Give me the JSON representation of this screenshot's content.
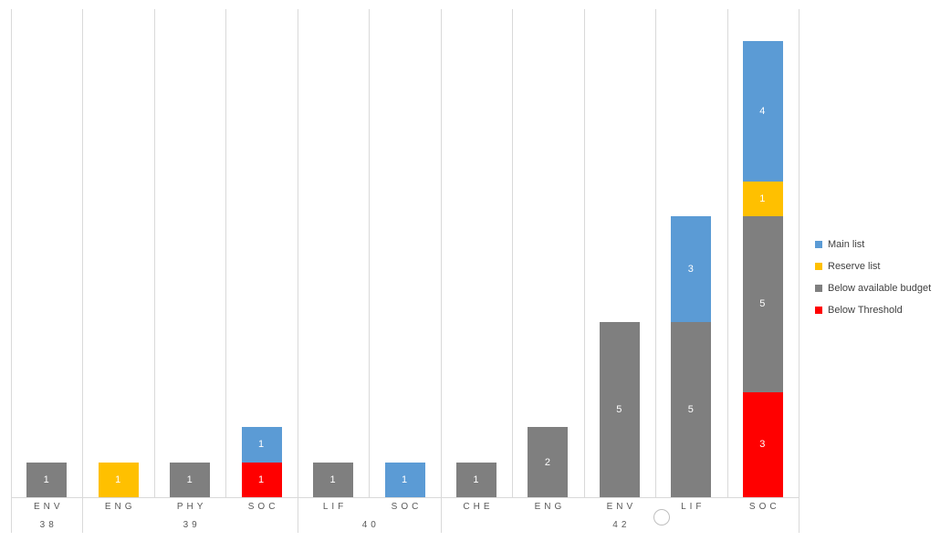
{
  "chart_data": {
    "type": "bar",
    "stacked": true,
    "title": "",
    "categories": [
      "ENV",
      "ENG",
      "PHY",
      "SOC",
      "LIF",
      "SOC",
      "CHE",
      "ENG",
      "ENV",
      "LIF",
      "SOC"
    ],
    "group_labels": [
      {
        "label": "38",
        "span": 1
      },
      {
        "label": "39",
        "span": 3
      },
      {
        "label": "40",
        "span": 2
      },
      {
        "label": "42",
        "span": 5
      }
    ],
    "series": [
      {
        "name": "Below Threshold",
        "color": "#FF0000",
        "values": [
          0,
          0,
          0,
          1,
          0,
          0,
          0,
          0,
          0,
          0,
          3
        ]
      },
      {
        "name": "Below available budget",
        "color": "#7F7F7F",
        "values": [
          1,
          0,
          1,
          0,
          1,
          0,
          1,
          2,
          5,
          5,
          5
        ]
      },
      {
        "name": "Reserve list",
        "color": "#FFC000",
        "values": [
          0,
          1,
          0,
          0,
          0,
          0,
          0,
          0,
          0,
          0,
          1
        ]
      },
      {
        "name": "Main list",
        "color": "#5B9BD5",
        "values": [
          0,
          0,
          0,
          1,
          0,
          1,
          0,
          0,
          0,
          3,
          4
        ]
      }
    ],
    "legend": [
      {
        "label": "Main list",
        "color": "#5B9BD5"
      },
      {
        "label": "Reserve list",
        "color": "#FFC000"
      },
      {
        "label": "Below available budget",
        "color": "#7F7F7F"
      },
      {
        "label": "Below Threshold",
        "color": "#FF0000"
      }
    ],
    "legend_position": "right",
    "ylim": [
      0,
      13.9
    ],
    "gridlines": "vertical",
    "data_labels": true,
    "data_label_color": "#FFFFFF"
  },
  "colors": {
    "background": "#FFFFFF",
    "gridline": "#D9D9D9",
    "axis_text": "#595959",
    "legend_text": "#404040"
  }
}
